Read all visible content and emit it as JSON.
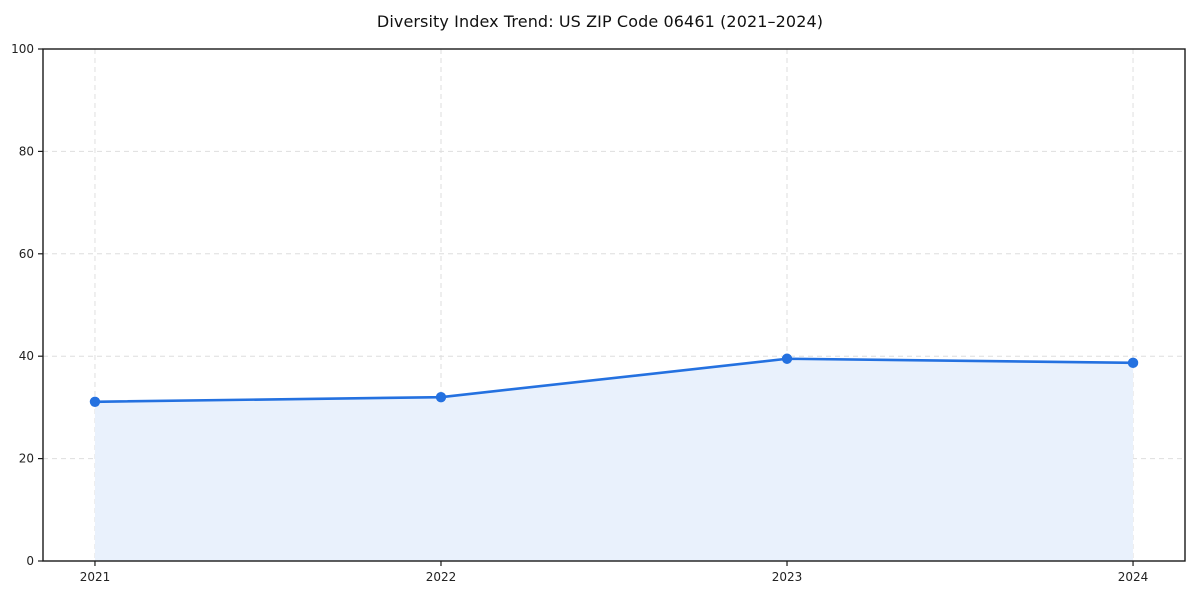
{
  "chart_data": {
    "type": "area",
    "title": "Diversity Index Trend: US ZIP Code 06461 (2021–2024)",
    "x": [
      "2021",
      "2022",
      "2023",
      "2024"
    ],
    "series": [
      {
        "name": "Diversity Index",
        "values": [
          31.1,
          32.0,
          39.5,
          38.7
        ]
      }
    ],
    "xlabel": "",
    "ylabel": "",
    "ylim": [
      0,
      100
    ],
    "yticks": [
      0,
      20,
      40,
      60,
      80,
      100
    ],
    "grid": true,
    "grid_style": "dashed",
    "legend": "none",
    "colors": {
      "line": "#2471e0",
      "marker": "#2471e0",
      "area_fill": "#e9f1fc",
      "grid": "#dedede",
      "frame": "#1a1a1a",
      "tick_label": "#222222",
      "background": "#ffffff"
    }
  }
}
